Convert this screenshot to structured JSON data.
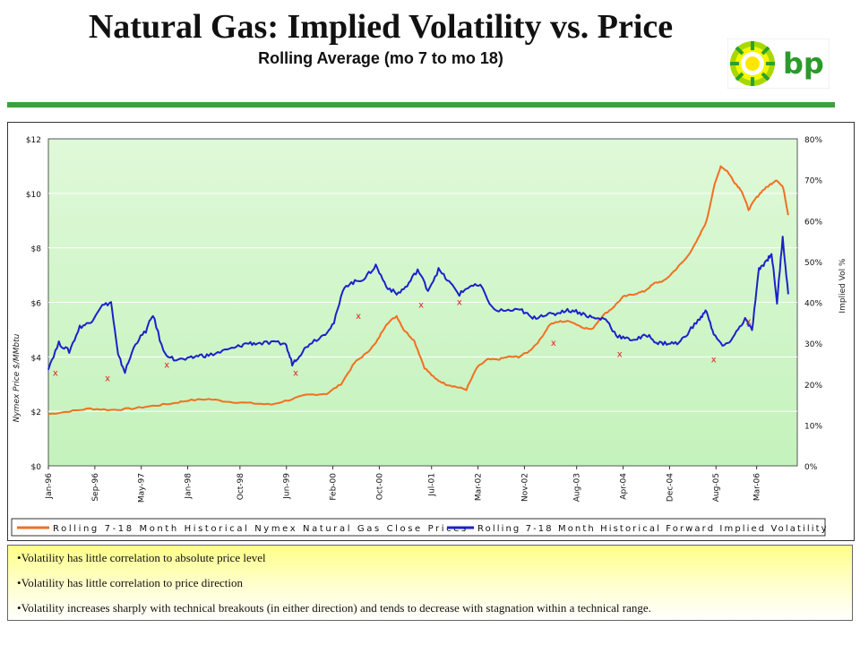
{
  "header": {
    "title": "Natural Gas: Implied Volatility vs. Price",
    "subtitle": "Rolling Average (mo 7 to mo 18)",
    "logo_text": "bp"
  },
  "colors": {
    "accent_green": "#3aa23a",
    "price_series": "#f07020",
    "volatility_series": "#1a22c8",
    "marker": "#e02020",
    "plot_bg": "#cdf5c5"
  },
  "chart_data": {
    "type": "line",
    "title": "",
    "xlabel": "",
    "ylabel_left": "Nymex Price $/MMbtu",
    "ylabel_right": "Implied Vol %",
    "xlim": [
      "1996-01",
      "2006-09"
    ],
    "ylim_left": [
      0,
      12
    ],
    "ylim_right": [
      0,
      80
    ],
    "grid": true,
    "legend": "bottom",
    "y_ticks_left": [
      "$0",
      "$2",
      "$4",
      "$6",
      "$8",
      "$10",
      "$12"
    ],
    "y_ticks_right": [
      "0%",
      "10%",
      "20%",
      "30%",
      "40%",
      "50%",
      "60%",
      "70%",
      "80%"
    ],
    "x_ticks": [
      {
        "label": "Jan-96",
        "t": 1996.0
      },
      {
        "label": "Sep-96",
        "t": 1996.667
      },
      {
        "label": "May-97",
        "t": 1997.333
      },
      {
        "label": "Jan-98",
        "t": 1998.0
      },
      {
        "label": "Oct-98",
        "t": 1998.75
      },
      {
        "label": "Jun-99",
        "t": 1999.417
      },
      {
        "label": "Feb-00",
        "t": 2000.083
      },
      {
        "label": "Oct-00",
        "t": 2000.75
      },
      {
        "label": "Jul-01",
        "t": 2001.5
      },
      {
        "label": "Mar-02",
        "t": 2002.167
      },
      {
        "label": "Nov-02",
        "t": 2002.833
      },
      {
        "label": "Aug-03",
        "t": 2003.583
      },
      {
        "label": "Apr-04",
        "t": 2004.25
      },
      {
        "label": "Dec-04",
        "t": 2004.917
      },
      {
        "label": "Aug-05",
        "t": 2005.583
      },
      {
        "label": "Mar-06",
        "t": 2006.167
      }
    ],
    "series": [
      {
        "name": "Rolling 7-18 Month Historical Nymex Natural Gas Close Prices",
        "axis": "left",
        "t": [
          1996.0,
          1996.3,
          1996.6,
          1996.9,
          1997.2,
          1997.5,
          1997.8,
          1998.0,
          1998.3,
          1998.6,
          1998.9,
          1999.2,
          1999.5,
          1999.7,
          2000.0,
          2000.2,
          2000.4,
          2000.55,
          2000.7,
          2000.85,
          2001.0,
          2001.1,
          2001.25,
          2001.4,
          2001.55,
          2001.7,
          2001.85,
          2002.0,
          2002.15,
          2002.3,
          2002.45,
          2002.6,
          2002.75,
          2002.9,
          2003.05,
          2003.2,
          2003.35,
          2003.5,
          2003.65,
          2003.8,
          2003.95,
          2004.1,
          2004.25,
          2004.4,
          2004.55,
          2004.7,
          2004.85,
          2005.0,
          2005.15,
          2005.3,
          2005.45,
          2005.55,
          2005.65,
          2005.75,
          2005.85,
          2005.95,
          2006.05,
          2006.15,
          2006.25,
          2006.35,
          2006.45,
          2006.55,
          2006.62
        ],
        "values": [
          1.9,
          2.0,
          2.1,
          2.05,
          2.1,
          2.2,
          2.3,
          2.4,
          2.45,
          2.35,
          2.3,
          2.25,
          2.45,
          2.6,
          2.65,
          3.0,
          3.8,
          4.1,
          4.5,
          5.2,
          5.5,
          5.0,
          4.6,
          3.6,
          3.2,
          3.0,
          2.9,
          2.8,
          3.6,
          3.9,
          3.9,
          4.0,
          4.0,
          4.2,
          4.6,
          5.2,
          5.3,
          5.3,
          5.1,
          5.0,
          5.5,
          5.8,
          6.2,
          6.3,
          6.4,
          6.7,
          6.8,
          7.2,
          7.6,
          8.2,
          9.0,
          10.2,
          11.0,
          10.8,
          10.4,
          10.1,
          9.4,
          9.8,
          10.1,
          10.3,
          10.5,
          10.2,
          9.2
        ]
      },
      {
        "name": "Rolling 7-18 Month Historical Forward Implied Volatility",
        "axis": "right",
        "t": [
          1996.0,
          1996.15,
          1996.3,
          1996.45,
          1996.6,
          1996.75,
          1996.9,
          1997.0,
          1997.1,
          1997.25,
          1997.4,
          1997.5,
          1997.65,
          1997.8,
          1998.0,
          1998.15,
          1998.3,
          1998.5,
          1998.7,
          1998.85,
          1999.0,
          1999.2,
          1999.4,
          1999.5,
          1999.6,
          1999.75,
          1999.95,
          2000.1,
          2000.25,
          2000.4,
          2000.55,
          2000.7,
          2000.85,
          2001.0,
          2001.15,
          2001.3,
          2001.45,
          2001.6,
          2001.75,
          2001.9,
          2002.05,
          2002.2,
          2002.4,
          2002.6,
          2002.8,
          2002.95,
          2003.1,
          2003.25,
          2003.4,
          2003.55,
          2003.7,
          2003.85,
          2004.0,
          2004.15,
          2004.3,
          2004.45,
          2004.6,
          2004.75,
          2004.9,
          2005.05,
          2005.2,
          2005.35,
          2005.45,
          2005.55,
          2005.7,
          2005.85,
          2006.0,
          2006.1,
          2006.2,
          2006.3,
          2006.38,
          2006.46,
          2006.54,
          2006.62
        ],
        "values": [
          24,
          30,
          28,
          34,
          35,
          39,
          40,
          27,
          23,
          30,
          33,
          37,
          28,
          26,
          26,
          27,
          27,
          28,
          29,
          30,
          30,
          30,
          30,
          25,
          27,
          30,
          32,
          35,
          44,
          45,
          46,
          49,
          44,
          42,
          44,
          48,
          43,
          48,
          45,
          42,
          44,
          44,
          38,
          38,
          38,
          36,
          37,
          37,
          38,
          38,
          37,
          36,
          36,
          32,
          31,
          31,
          32,
          30,
          30,
          30,
          33,
          36,
          38,
          32,
          29,
          32,
          36,
          33,
          48,
          50,
          52,
          40,
          56,
          42
        ]
      }
    ],
    "markers": [
      {
        "label": "x",
        "t": 1996.1,
        "y": 3.3
      },
      {
        "label": "x",
        "t": 1996.85,
        "y": 3.1
      },
      {
        "label": "x",
        "t": 1997.7,
        "y": 3.6
      },
      {
        "label": "x",
        "t": 1999.55,
        "y": 3.3
      },
      {
        "label": "x",
        "t": 2000.45,
        "y": 5.4
      },
      {
        "label": "x",
        "t": 2001.35,
        "y": 5.8
      },
      {
        "label": "x",
        "t": 2001.9,
        "y": 5.9
      },
      {
        "label": "x",
        "t": 2003.25,
        "y": 4.4
      },
      {
        "label": "x",
        "t": 2004.2,
        "y": 4.0
      },
      {
        "label": "x",
        "t": 2005.55,
        "y": 3.8
      },
      {
        "label": "x",
        "t": 2006.05,
        "y": 5.2
      }
    ],
    "legend_entries": [
      "Rolling 7-18 Month Historical Nymex Natural Gas Close Prices",
      "Rolling 7-18 Month Historical Forward Implied Volatility"
    ]
  },
  "notes": [
    "Volatility has little correlation to absolute price level",
    "Volatility has little correlation to price direction",
    "Volatility increases sharply with technical breakouts (in either direction) and tends to decrease with stagnation within a technical range."
  ]
}
